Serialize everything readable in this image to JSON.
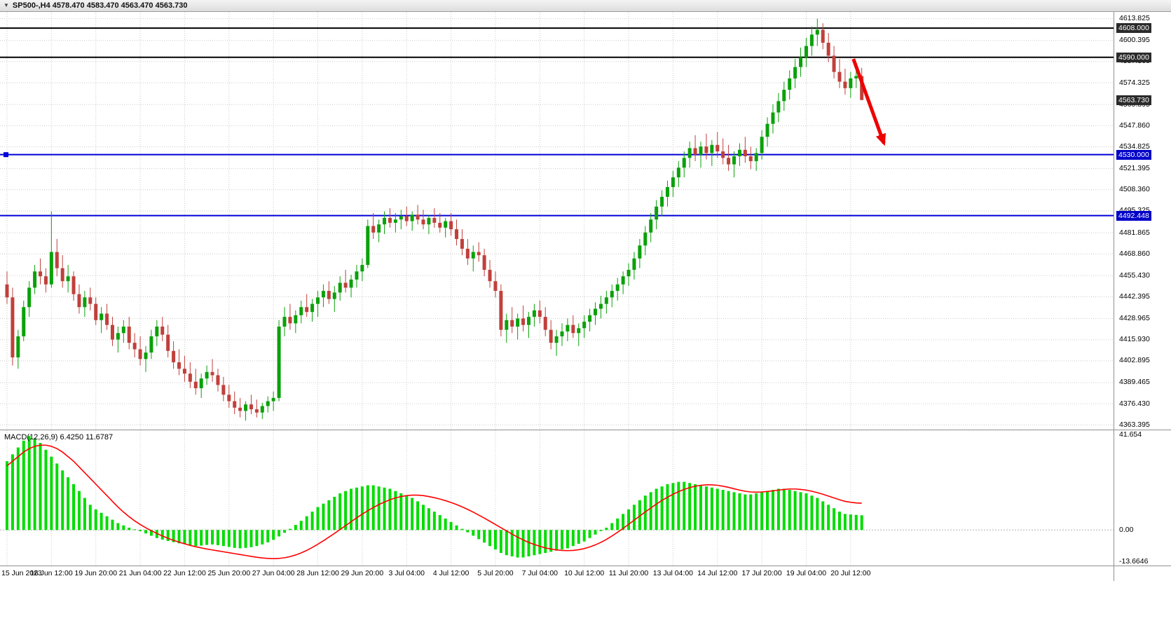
{
  "window": {
    "title": "SP500-,H4 4578.470 4583.470 4563.470 4563.730",
    "symbol": "SP500-",
    "timeframe": "H4",
    "ohlc": {
      "open": "4578.470",
      "high": "4583.470",
      "low": "4563.470",
      "close": "4563.730"
    }
  },
  "indicator": {
    "label": "MACD(12,26,9) 6.4250 11.6787"
  },
  "chart_data": {
    "type": "candlestick+macd",
    "title": "SP500- H4 with MACD(12,26,9)",
    "price_axis": {
      "ylim": [
        4360.5,
        4618.0
      ],
      "labels": [
        "4613.825",
        "4600.395",
        "4587.360",
        "4574.325",
        "4560.895",
        "4547.860",
        "4534.825",
        "4521.395",
        "4508.360",
        "4495.325",
        "4481.865",
        "4468.860",
        "4455.430",
        "4442.395",
        "4428.965",
        "4415.930",
        "4402.895",
        "4389.465",
        "4376.430",
        "4363.395"
      ],
      "badges": [
        {
          "text": "4608.000",
          "price": 4608.0,
          "style": "dark"
        },
        {
          "text": "4590.000",
          "price": 4590.0,
          "style": "dark"
        },
        {
          "text": "4563.730",
          "price": 4563.73,
          "style": "dark"
        },
        {
          "text": "4530.000",
          "price": 4530.0,
          "style": "blue"
        },
        {
          "text": "4492.448",
          "price": 4492.448,
          "style": "blue"
        }
      ]
    },
    "macd_axis": {
      "ylim": [
        -15.5,
        43.5
      ],
      "labels": [
        {
          "text": "41.654",
          "value": 41.654
        },
        {
          "text": "0.00",
          "value": 0
        },
        {
          "text": "-13.6646",
          "value": -13.6646
        }
      ]
    },
    "x_ticks": [
      {
        "bar": 0,
        "label": "15 Jun 2023"
      },
      {
        "bar": 8,
        "label": "16 Jun 12:00"
      },
      {
        "bar": 16,
        "label": "19 Jun 20:00"
      },
      {
        "bar": 24,
        "label": "21 Jun 04:00"
      },
      {
        "bar": 32,
        "label": "22 Jun 12:00"
      },
      {
        "bar": 40,
        "label": "25 Jun 20:00"
      },
      {
        "bar": 48,
        "label": "27 Jun 04:00"
      },
      {
        "bar": 56,
        "label": "28 Jun 12:00"
      },
      {
        "bar": 64,
        "label": "29 Jun 20:00"
      },
      {
        "bar": 72,
        "label": "3 Jul 04:00"
      },
      {
        "bar": 80,
        "label": "4 Jul 12:00"
      },
      {
        "bar": 88,
        "label": "5 Jul 20:00"
      },
      {
        "bar": 96,
        "label": "7 Jul 04:00"
      },
      {
        "bar": 104,
        "label": "10 Jul 12:00"
      },
      {
        "bar": 112,
        "label": "11 Jul 20:00"
      },
      {
        "bar": 120,
        "label": "13 Jul 04:00"
      },
      {
        "bar": 128,
        "label": "14 Jul 12:00"
      },
      {
        "bar": 136,
        "label": "17 Jul 20:00"
      },
      {
        "bar": 144,
        "label": "19 Jul 04:00"
      },
      {
        "bar": 152,
        "label": "20 Jul 12:00"
      }
    ],
    "hlines": [
      {
        "price": 4608.0,
        "color": "#000000",
        "width": 2,
        "label": "4608.000"
      },
      {
        "price": 4590.0,
        "color": "#000000",
        "width": 2,
        "label": "4590.000"
      },
      {
        "price": 4530.0,
        "color": "#0000d8",
        "width": 2,
        "label": "4530.000"
      },
      {
        "price": 4492.448,
        "color": "#0000d8",
        "width": 2,
        "label": "4492.448"
      }
    ],
    "candles": [
      [
        4450,
        4458,
        4438,
        4442
      ],
      [
        4442,
        4448,
        4400,
        4405
      ],
      [
        4405,
        4422,
        4398,
        4418
      ],
      [
        4418,
        4440,
        4415,
        4436
      ],
      [
        4436,
        4452,
        4430,
        4448
      ],
      [
        4448,
        4462,
        4444,
        4458
      ],
      [
        4458,
        4466,
        4450,
        4455
      ],
      [
        4455,
        4460,
        4445,
        4450
      ],
      [
        4450,
        4495,
        4448,
        4470
      ],
      [
        4470,
        4478,
        4455,
        4460
      ],
      [
        4460,
        4468,
        4448,
        4452
      ],
      [
        4452,
        4462,
        4445,
        4455
      ],
      [
        4455,
        4458,
        4440,
        4444
      ],
      [
        4444,
        4450,
        4432,
        4436
      ],
      [
        4436,
        4446,
        4430,
        4442
      ],
      [
        4442,
        4448,
        4434,
        4438
      ],
      [
        4438,
        4442,
        4425,
        4428
      ],
      [
        4428,
        4436,
        4420,
        4432
      ],
      [
        4432,
        4438,
        4422,
        4425
      ],
      [
        4425,
        4430,
        4412,
        4416
      ],
      [
        4416,
        4424,
        4408,
        4420
      ],
      [
        4420,
        4428,
        4414,
        4424
      ],
      [
        4424,
        4430,
        4410,
        4414
      ],
      [
        4414,
        4420,
        4405,
        4410
      ],
      [
        4410,
        4418,
        4400,
        4404
      ],
      [
        4404,
        4412,
        4396,
        4408
      ],
      [
        4408,
        4422,
        4404,
        4418
      ],
      [
        4418,
        4428,
        4412,
        4424
      ],
      [
        4424,
        4430,
        4415,
        4419
      ],
      [
        4419,
        4425,
        4405,
        4409
      ],
      [
        4409,
        4415,
        4398,
        4402
      ],
      [
        4402,
        4410,
        4394,
        4398
      ],
      [
        4398,
        4406,
        4390,
        4395
      ],
      [
        4395,
        4402,
        4386,
        4390
      ],
      [
        4390,
        4398,
        4382,
        4386
      ],
      [
        4386,
        4395,
        4380,
        4392
      ],
      [
        4392,
        4400,
        4388,
        4396
      ],
      [
        4396,
        4404,
        4390,
        4394
      ],
      [
        4394,
        4398,
        4384,
        4388
      ],
      [
        4388,
        4393,
        4378,
        4382
      ],
      [
        4382,
        4388,
        4374,
        4378
      ],
      [
        4378,
        4384,
        4370,
        4374
      ],
      [
        4374,
        4380,
        4368,
        4372
      ],
      [
        4372,
        4378,
        4366,
        4376
      ],
      [
        4376,
        4382,
        4370,
        4373
      ],
      [
        4373,
        4379,
        4368,
        4371
      ],
      [
        4371,
        4377,
        4367,
        4375
      ],
      [
        4375,
        4381,
        4371,
        4378
      ],
      [
        4378,
        4384,
        4372,
        4380
      ],
      [
        4380,
        4428,
        4378,
        4424
      ],
      [
        4424,
        4436,
        4418,
        4430
      ],
      [
        4430,
        4438,
        4422,
        4426
      ],
      [
        4426,
        4434,
        4420,
        4431
      ],
      [
        4431,
        4440,
        4426,
        4436
      ],
      [
        4436,
        4444,
        4430,
        4433
      ],
      [
        4433,
        4441,
        4427,
        4438
      ],
      [
        4438,
        4446,
        4430,
        4442
      ],
      [
        4442,
        4450,
        4436,
        4446
      ],
      [
        4446,
        4452,
        4438,
        4441
      ],
      [
        4441,
        4449,
        4433,
        4445
      ],
      [
        4445,
        4455,
        4440,
        4451
      ],
      [
        4451,
        4459,
        4445,
        4448
      ],
      [
        4448,
        4456,
        4442,
        4453
      ],
      [
        4453,
        4462,
        4448,
        4458
      ],
      [
        4458,
        4466,
        4452,
        4462
      ],
      [
        4462,
        4490,
        4460,
        4486
      ],
      [
        4486,
        4494,
        4478,
        4482
      ],
      [
        4482,
        4490,
        4476,
        4487
      ],
      [
        4487,
        4495,
        4481,
        4491
      ],
      [
        4491,
        4497,
        4485,
        4488
      ],
      [
        4488,
        4494,
        4482,
        4490
      ],
      [
        4490,
        4496,
        4484,
        4492
      ],
      [
        4492,
        4498,
        4486,
        4489
      ],
      [
        4489,
        4495,
        4483,
        4493
      ],
      [
        4493,
        4499,
        4487,
        4490
      ],
      [
        4490,
        4496,
        4484,
        4487
      ],
      [
        4487,
        4493,
        4481,
        4491
      ],
      [
        4491,
        4497,
        4485,
        4488
      ],
      [
        4488,
        4494,
        4482,
        4485
      ],
      [
        4485,
        4491,
        4479,
        4489
      ],
      [
        4489,
        4494,
        4480,
        4484
      ],
      [
        4484,
        4490,
        4474,
        4478
      ],
      [
        4478,
        4484,
        4468,
        4472
      ],
      [
        4472,
        4478,
        4462,
        4466
      ],
      [
        4466,
        4474,
        4458,
        4470
      ],
      [
        4470,
        4476,
        4464,
        4468
      ],
      [
        4468,
        4472,
        4455,
        4459
      ],
      [
        4459,
        4465,
        4448,
        4452
      ],
      [
        4452,
        4458,
        4442,
        4446
      ],
      [
        4446,
        4450,
        4418,
        4422
      ],
      [
        4422,
        4432,
        4414,
        4428
      ],
      [
        4428,
        4436,
        4420,
        4424
      ],
      [
        4424,
        4432,
        4416,
        4429
      ],
      [
        4429,
        4437,
        4421,
        4425
      ],
      [
        4425,
        4433,
        4417,
        4430
      ],
      [
        4430,
        4438,
        4424,
        4434
      ],
      [
        4434,
        4440,
        4426,
        4430
      ],
      [
        4430,
        4436,
        4418,
        4422
      ],
      [
        4422,
        4428,
        4410,
        4414
      ],
      [
        4414,
        4422,
        4406,
        4418
      ],
      [
        4418,
        4426,
        4412,
        4421
      ],
      [
        4421,
        4429,
        4415,
        4425
      ],
      [
        4425,
        4431,
        4417,
        4420
      ],
      [
        4420,
        4426,
        4412,
        4423
      ],
      [
        4423,
        4431,
        4417,
        4427
      ],
      [
        4427,
        4435,
        4421,
        4431
      ],
      [
        4431,
        4439,
        4425,
        4435
      ],
      [
        4435,
        4443,
        4429,
        4438
      ],
      [
        4438,
        4446,
        4432,
        4442
      ],
      [
        4442,
        4450,
        4436,
        4446
      ],
      [
        4446,
        4454,
        4440,
        4450
      ],
      [
        4450,
        4458,
        4444,
        4455
      ],
      [
        4455,
        4463,
        4449,
        4459
      ],
      [
        4459,
        4470,
        4453,
        4466
      ],
      [
        4466,
        4478,
        4460,
        4474
      ],
      [
        4474,
        4486,
        4468,
        4482
      ],
      [
        4482,
        4494,
        4476,
        4490
      ],
      [
        4490,
        4502,
        4484,
        4498
      ],
      [
        4498,
        4508,
        4492,
        4504
      ],
      [
        4504,
        4514,
        4498,
        4510
      ],
      [
        4510,
        4520,
        4504,
        4516
      ],
      [
        4516,
        4526,
        4510,
        4522
      ],
      [
        4522,
        4532,
        4516,
        4528
      ],
      [
        4528,
        4538,
        4522,
        4534
      ],
      [
        4534,
        4542,
        4526,
        4530
      ],
      [
        4530,
        4538,
        4522,
        4535
      ],
      [
        4535,
        4543,
        4527,
        4531
      ],
      [
        4531,
        4539,
        4523,
        4536
      ],
      [
        4536,
        4544,
        4528,
        4532
      ],
      [
        4532,
        4540,
        4524,
        4528
      ],
      [
        4528,
        4536,
        4520,
        4524
      ],
      [
        4524,
        4532,
        4516,
        4529
      ],
      [
        4529,
        4537,
        4523,
        4533
      ],
      [
        4533,
        4541,
        4525,
        4529
      ],
      [
        4529,
        4535,
        4521,
        4526
      ],
      [
        4526,
        4534,
        4520,
        4531
      ],
      [
        4531,
        4545,
        4527,
        4541
      ],
      [
        4541,
        4553,
        4535,
        4549
      ],
      [
        4549,
        4561,
        4543,
        4556
      ],
      [
        4556,
        4568,
        4550,
        4563
      ],
      [
        4563,
        4575,
        4557,
        4570
      ],
      [
        4570,
        4582,
        4564,
        4577
      ],
      [
        4577,
        4589,
        4571,
        4584
      ],
      [
        4584,
        4596,
        4578,
        4590
      ],
      [
        4590,
        4602,
        4584,
        4597
      ],
      [
        4597,
        4609,
        4591,
        4604
      ],
      [
        4604,
        4613.8,
        4597,
        4607
      ],
      [
        4607,
        4611,
        4595,
        4599
      ],
      [
        4599,
        4605,
        4587,
        4591
      ],
      [
        4591,
        4597,
        4577,
        4581
      ],
      [
        4581,
        4589,
        4571,
        4575
      ],
      [
        4575,
        4583,
        4567,
        4571
      ],
      [
        4571,
        4581,
        4565,
        4577
      ],
      [
        4577,
        4586,
        4571,
        4578.5
      ],
      [
        4578.5,
        4583.5,
        4563.5,
        4563.7
      ]
    ],
    "macd": {
      "histogram": [
        30,
        33,
        36,
        39,
        41,
        40,
        38,
        35,
        32,
        29,
        26,
        23,
        20,
        17,
        14,
        11,
        9,
        7.5,
        6,
        4.5,
        3,
        2,
        1,
        0.3,
        -0.5,
        -1.5,
        -2.5,
        -3.5,
        -4.2,
        -4.8,
        -5.3,
        -5.8,
        -6.2,
        -6.6,
        -7,
        -6.8,
        -6.5,
        -6.3,
        -6.6,
        -7,
        -7.4,
        -7.8,
        -8,
        -7.8,
        -7.5,
        -7,
        -6.3,
        -5.4,
        -4.3,
        -2.8,
        -1.2,
        0.5,
        2.2,
        4,
        6,
        8,
        10,
        11.5,
        13,
        14.5,
        16,
        17,
        18,
        18.5,
        19,
        19.5,
        19.5,
        19,
        18.5,
        18,
        17,
        16,
        15,
        14,
        12.5,
        11,
        9.5,
        8,
        6.5,
        5,
        3.5,
        2,
        0.5,
        -1,
        -2.5,
        -4,
        -5.5,
        -7,
        -8.5,
        -10,
        -11,
        -11.5,
        -12,
        -12,
        -11.5,
        -11,
        -10.5,
        -10,
        -9.5,
        -9,
        -8.5,
        -8,
        -7,
        -6,
        -5,
        -3.5,
        -2,
        -0.5,
        1,
        3,
        5,
        7,
        9,
        11,
        13,
        15,
        16.5,
        18,
        19,
        20,
        20.5,
        21,
        21,
        20.5,
        20,
        19.5,
        19,
        18.5,
        18,
        17.5,
        17,
        16.5,
        16,
        15.5,
        15.5,
        16,
        16.5,
        17,
        17.5,
        18,
        18,
        17.5,
        17,
        16.5,
        16,
        15,
        14,
        12.5,
        11,
        9.5,
        8,
        7,
        6.8,
        6.6,
        6.425
      ],
      "signal": [
        28,
        30,
        32,
        34,
        35.5,
        36.5,
        37,
        37,
        36.5,
        35.5,
        34,
        32,
        30,
        27.5,
        25,
        22.5,
        20,
        17.5,
        15,
        12.5,
        10,
        7.8,
        5.8,
        4,
        2.4,
        1,
        -0.3,
        -1.5,
        -2.6,
        -3.6,
        -4.5,
        -5.3,
        -6,
        -6.7,
        -7.3,
        -7.8,
        -8.3,
        -8.7,
        -9.1,
        -9.5,
        -9.9,
        -10.3,
        -10.7,
        -11.1,
        -11.5,
        -11.9,
        -12.2,
        -12.4,
        -12.5,
        -12.4,
        -12.1,
        -11.6,
        -10.9,
        -10,
        -8.9,
        -7.6,
        -6.2,
        -4.7,
        -3.1,
        -1.5,
        0.2,
        1.9,
        3.6,
        5.3,
        6.9,
        8.4,
        9.8,
        11.1,
        12.2,
        13.2,
        14,
        14.6,
        15,
        15.2,
        15.2,
        15,
        14.6,
        14.1,
        13.5,
        12.8,
        12,
        11.1,
        10.1,
        9,
        7.8,
        6.5,
        5.2,
        3.8,
        2.4,
        1,
        -0.4,
        -1.8,
        -3.1,
        -4.3,
        -5.4,
        -6.3,
        -7.1,
        -7.8,
        -8.3,
        -8.7,
        -8.9,
        -9,
        -8.9,
        -8.6,
        -8.1,
        -7.4,
        -6.5,
        -5.4,
        -4.1,
        -2.6,
        -1,
        0.7,
        2.5,
        4.3,
        6.1,
        7.9,
        9.6,
        11.3,
        12.9,
        14.3,
        15.6,
        16.7,
        17.7,
        18.5,
        19.1,
        19.5,
        19.7,
        19.7,
        19.5,
        19.1,
        18.6,
        18,
        17.4,
        16.9,
        16.6,
        16.5,
        16.6,
        16.8,
        17.1,
        17.4,
        17.7,
        17.9,
        17.9,
        17.7,
        17.4,
        16.9,
        16.3,
        15.6,
        14.8,
        14,
        13.2,
        12.5,
        12.1,
        11.8,
        11.6787
      ],
      "current_values": {
        "macd": "6.4250",
        "signal": "11.6787"
      }
    },
    "annotation_arrow": {
      "from_bar": 152.5,
      "from_price": 4589,
      "to_bar": 158,
      "to_price": 4537,
      "color": "#ee0000"
    },
    "colors": {
      "bull": "#0aa10a",
      "bear": "#c0403c",
      "histogram": "#00dc00",
      "signal": "#ff0000",
      "grid": "#cbcbcb",
      "zero_line": "#b0b0b0",
      "hline_black": "#000000",
      "hline_blue": "#0000d8",
      "badge_dark": "#2b2b2b",
      "badge_blue": "#0000c8",
      "arrow": "#ee0000"
    },
    "grid": true,
    "legend_position": "none"
  }
}
